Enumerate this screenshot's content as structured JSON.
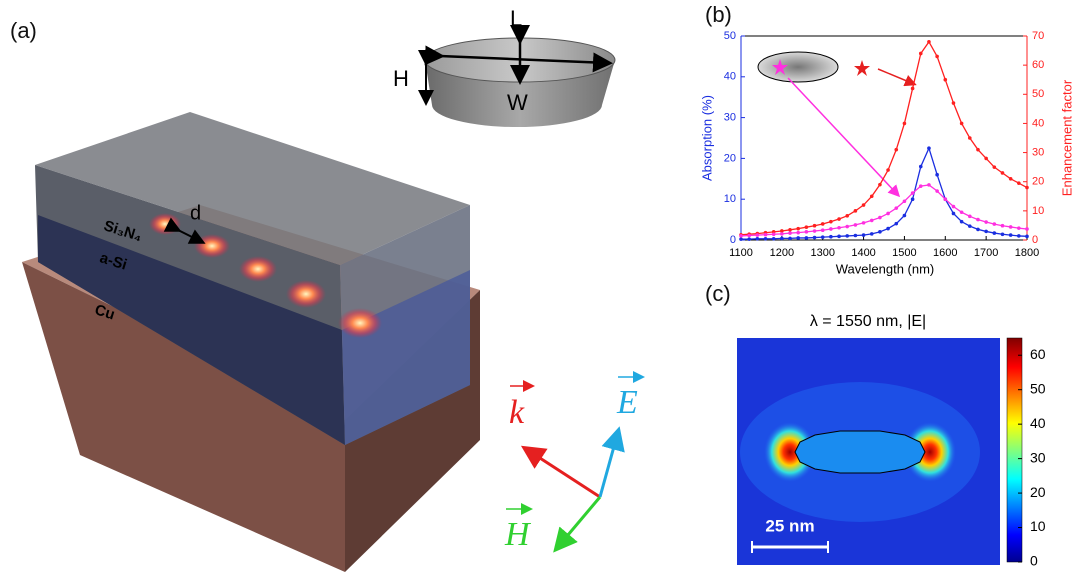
{
  "figure": {
    "panel_labels": [
      "(a)",
      "(b)",
      "(c)"
    ],
    "diagram": {
      "dimensions": {
        "length": "L",
        "height": "H",
        "width": "W"
      },
      "spacing": "d",
      "layers": [
        "Si₃N₄",
        "a-Si",
        "Cu"
      ],
      "vectors": {
        "wave": "k",
        "electric": "E",
        "magnetic": "H"
      }
    }
  },
  "chart_data": [
    {
      "type": "line",
      "x_label": "Wavelength (nm)",
      "y_label": "Absorption (%)",
      "y2_label": "Enhancement factor",
      "x": [
        1100,
        1120,
        1140,
        1160,
        1180,
        1200,
        1220,
        1240,
        1260,
        1280,
        1300,
        1320,
        1340,
        1360,
        1380,
        1400,
        1420,
        1440,
        1460,
        1480,
        1500,
        1520,
        1540,
        1560,
        1580,
        1600,
        1620,
        1640,
        1660,
        1680,
        1700,
        1720,
        1740,
        1760,
        1780,
        1800
      ],
      "xlim": [
        1100,
        1800
      ],
      "xticks": [
        1100,
        1200,
        1300,
        1400,
        1500,
        1600,
        1700,
        1800
      ],
      "ylim": [
        0,
        50
      ],
      "yticks": [
        0,
        10,
        20,
        30,
        40,
        50
      ],
      "y2lim": [
        0,
        70
      ],
      "y2ticks": [
        0,
        10,
        20,
        30,
        40,
        50,
        60,
        70
      ],
      "series": [
        {
          "color": "#ff2020",
          "axis": "y2",
          "values": [
            1.8,
            2.0,
            2.2,
            2.5,
            2.8,
            3.1,
            3.5,
            3.9,
            4.4,
            4.9,
            5.5,
            6.3,
            7.2,
            8.3,
            10,
            12,
            15,
            19,
            24,
            31,
            40,
            52,
            64,
            68,
            63,
            55,
            47,
            40,
            35,
            31,
            28,
            25,
            23,
            21,
            19.5,
            18
          ]
        },
        {
          "color": "#1a2ee0",
          "values": [
            0.2,
            0.2,
            0.3,
            0.3,
            0.3,
            0.4,
            0.4,
            0.5,
            0.5,
            0.6,
            0.7,
            0.8,
            0.9,
            1.0,
            1.1,
            1.2,
            1.5,
            2,
            2.8,
            4,
            6,
            10,
            18,
            22.5,
            16,
            10,
            6.5,
            4.5,
            3.4,
            2.6,
            2.1,
            1.7,
            1.4,
            1.2,
            1.0,
            0.9
          ]
        },
        {
          "color": "#ff30e0",
          "values": [
            1.0,
            1.1,
            1.2,
            1.3,
            1.4,
            1.5,
            1.7,
            1.8,
            2.0,
            2.2,
            2.4,
            2.7,
            3.0,
            3.3,
            3.7,
            4.2,
            4.8,
            5.5,
            6.5,
            7.8,
            9.5,
            11.5,
            13.2,
            13.5,
            12,
            10,
            8.2,
            6.8,
            5.8,
            5.0,
            4.4,
            3.9,
            3.5,
            3.2,
            2.9,
            2.7
          ]
        }
      ]
    },
    {
      "type": "heatmap",
      "title": "λ = 1550 nm, |E|",
      "clim": [
        0,
        65
      ],
      "cticks": [
        0,
        10,
        20,
        30,
        40,
        50,
        60
      ],
      "scale_bar": "25 nm"
    }
  ]
}
